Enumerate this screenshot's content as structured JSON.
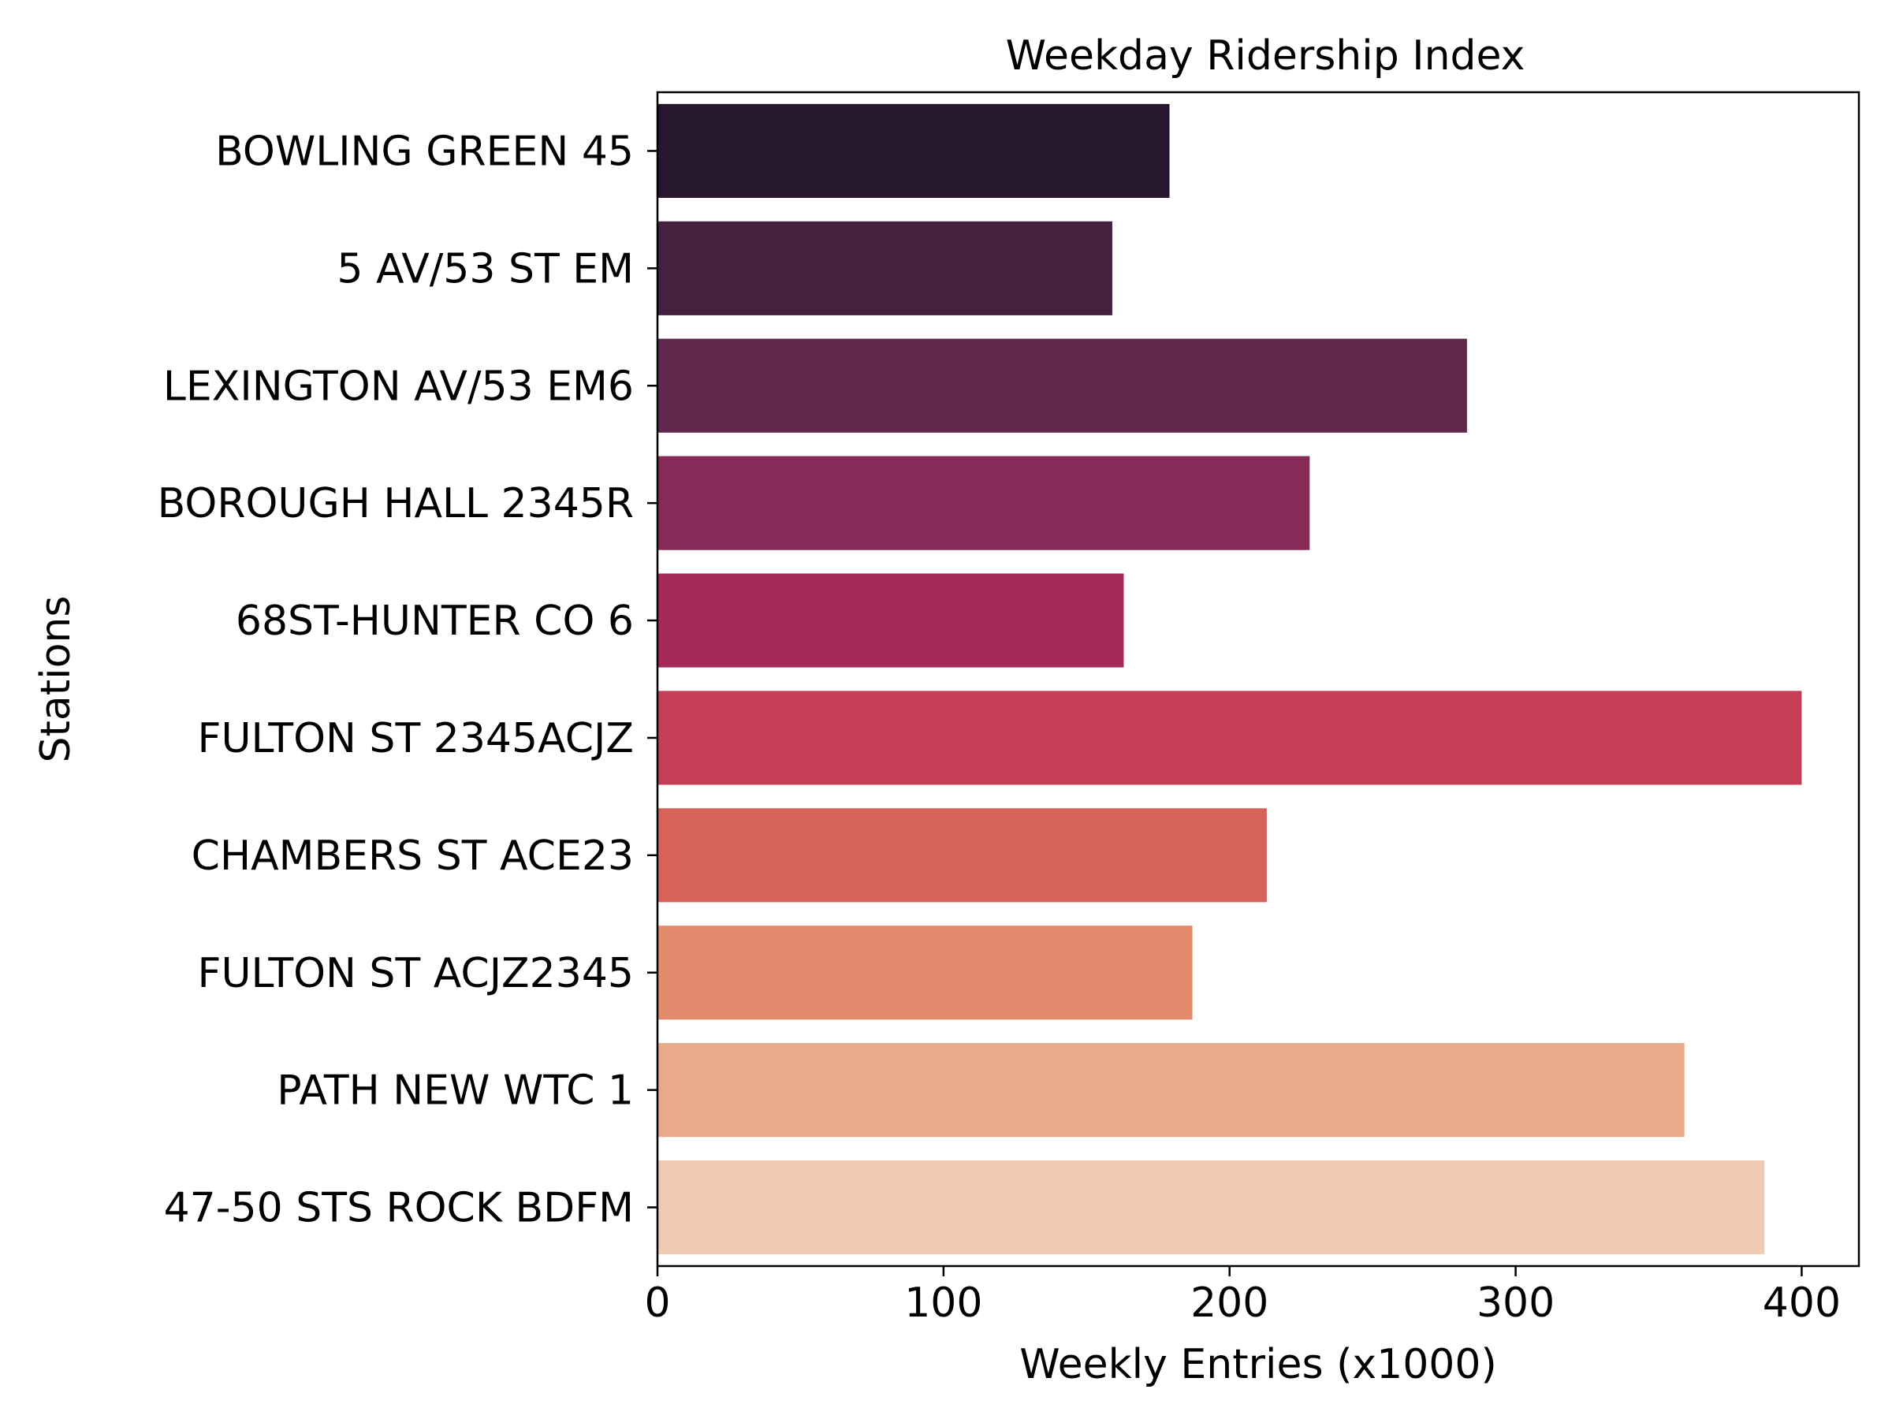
{
  "chart_data": {
    "type": "bar",
    "orientation": "horizontal",
    "title": "Weekday Ridership Index",
    "xlabel": "Weekly Entries (x1000)",
    "ylabel": "Stations",
    "xlim": [
      0,
      420
    ],
    "xticks": [
      0,
      100,
      200,
      300,
      400
    ],
    "grid": false,
    "categories": [
      "BOWLING GREEN 45",
      "5 AV/53 ST EM",
      "LEXINGTON AV/53 EM6",
      "BOROUGH HALL 2345R",
      "68ST-HUNTER CO 6",
      "FULTON ST 2345ACJZ",
      "CHAMBERS ST ACE23",
      "FULTON ST ACJZ2345",
      "PATH NEW WTC 1",
      "47-50 STS ROCK BDFM"
    ],
    "values": [
      179,
      159,
      283,
      228,
      163,
      400,
      213,
      187,
      359,
      387
    ],
    "colors": [
      "#26172e",
      "#43213f",
      "#60274d",
      "#862b57",
      "#a52a59",
      "#c43e56",
      "#d6625a",
      "#e28a6c",
      "#e9aa8b",
      "#efcbb3"
    ]
  }
}
